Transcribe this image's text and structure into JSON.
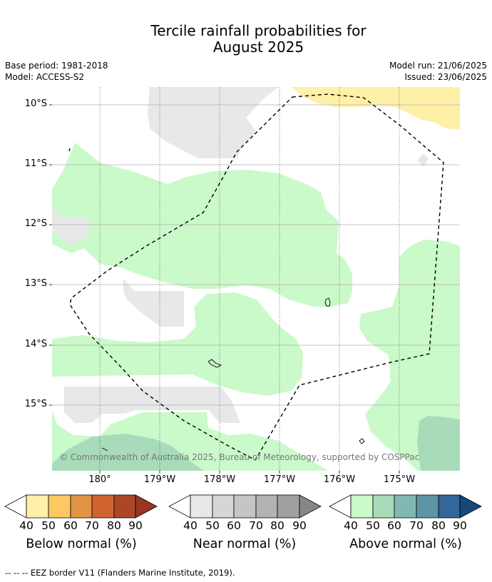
{
  "title_line1": "Tercile rainfall probabilities for",
  "title_line2": "August 2025",
  "meta": {
    "base_period": "Base period: 1981-2018",
    "model": "Model: ACCESS-S2",
    "model_run": "Model run: 21/06/2025",
    "issued": "Issued: 23/06/2025"
  },
  "map": {
    "lat_labels": [
      "10°S",
      "11°S",
      "12°S",
      "13°S",
      "14°S",
      "15°S"
    ],
    "lon_labels": [
      "180°",
      "179°W",
      "178°W",
      "177°W",
      "176°W",
      "175°W"
    ],
    "copyright": "© Commonwealth of Australia 2025, Bureau of Meteorology, supported by COSPPac"
  },
  "legend": {
    "below": {
      "label": "Below normal (%)",
      "ticks": [
        "40",
        "50",
        "60",
        "70",
        "80",
        "90"
      ],
      "colors": [
        "#fff0a8",
        "#fdc863",
        "#e29446",
        "#d16331",
        "#ad4627",
        "#983622"
      ]
    },
    "near": {
      "label": "Near normal (%)",
      "ticks": [
        "40",
        "50",
        "60",
        "70",
        "80",
        "90"
      ],
      "colors": [
        "#e8e8e8",
        "#d6d6d6",
        "#c5c5c5",
        "#b2b2b2",
        "#a0a0a0",
        "#868686"
      ]
    },
    "above": {
      "label": "Above normal (%)",
      "ticks": [
        "40",
        "50",
        "60",
        "70",
        "80",
        "90"
      ],
      "colors": [
        "#caf9ca",
        "#a8dbb9",
        "#82b8b3",
        "#5e95a5",
        "#33669a",
        "#16487a"
      ]
    }
  },
  "footnote": "--  --  -- EEZ border V11 (Flanders Marine Institute, 2019)."
}
